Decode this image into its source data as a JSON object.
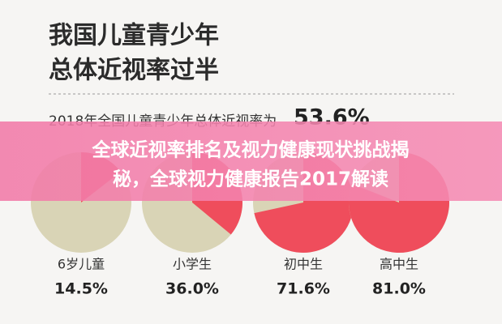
{
  "header": {
    "title_lines": [
      "我国儿童青少年",
      "总体近视率过半"
    ],
    "subtitle": "2018年全国儿童青少年总体近视率为",
    "highlight": "53.6%"
  },
  "banner": {
    "lines": [
      "全球近视率排名及视力健康现状挑战揭",
      "秘，全球视力健康报告2017解读"
    ]
  },
  "chart_data": [
    {
      "type": "pie",
      "title": "6岁儿童",
      "values": [
        14.5
      ],
      "value_labels": [
        "14.5%"
      ],
      "color": "#ef4d5c",
      "rest_color": "#d9d4b6"
    },
    {
      "type": "pie",
      "title": "小学生",
      "values": [
        36.0
      ],
      "value_labels": [
        "36.0%"
      ],
      "color": "#ef4d5c",
      "rest_color": "#d9d4b6"
    },
    {
      "type": "pie",
      "title": "初中生",
      "values": [
        71.6
      ],
      "value_labels": [
        "71.6%"
      ],
      "color": "#ef4d5c",
      "rest_color": "#d9d4b6"
    },
    {
      "type": "pie",
      "title": "高中生",
      "values": [
        81.0
      ],
      "value_labels": [
        "81.0%"
      ],
      "color": "#ef4d5c",
      "rest_color": "#d9d4b6"
    }
  ]
}
